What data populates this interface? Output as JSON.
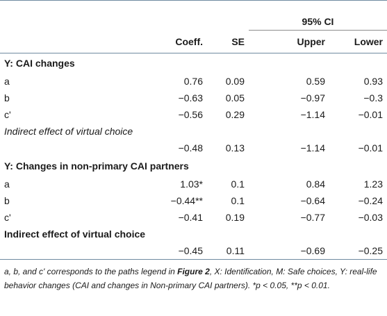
{
  "header": {
    "ci_label": "95% CI",
    "col_coeff": "Coeff.",
    "col_se": "SE",
    "col_upper": "Upper",
    "col_lower": "Lower"
  },
  "sections": [
    {
      "title": "Y: CAI changes",
      "rows": [
        {
          "label": "a",
          "coeff": "0.76",
          "se": "0.09",
          "upper": "0.59",
          "lower": "0.93"
        },
        {
          "label": "b",
          "coeff": "−0.63",
          "se": "0.05",
          "upper": "−0.97",
          "lower": "−0.3"
        },
        {
          "label": "c'",
          "coeff": "−0.56",
          "se": "0.29",
          "upper": "−1.14",
          "lower": "−0.01"
        }
      ],
      "indirect_label": "Indirect effect of virtual choice",
      "indirect": {
        "coeff": "−0.48",
        "se": "0.13",
        "upper": "−1.14",
        "lower": "−0.01"
      }
    },
    {
      "title": "Y: Changes in non-primary CAI partners",
      "rows": [
        {
          "label": "a",
          "coeff": "1.03*",
          "se": "0.1",
          "upper": "0.84",
          "lower": "1.23"
        },
        {
          "label": "b",
          "coeff": "−0.44**",
          "se": "0.1",
          "upper": "−0.64",
          "lower": "−0.24"
        },
        {
          "label": "c'",
          "coeff": "−0.41",
          "se": "0.19",
          "upper": "−0.77",
          "lower": "−0.03"
        }
      ],
      "indirect_label": "Indirect effect of virtual choice",
      "indirect": {
        "coeff": "−0.45",
        "se": "0.11",
        "upper": "−0.69",
        "lower": "−0.25"
      }
    }
  ],
  "footnote": {
    "part1": "a, b, and c' corresponds to the paths legend in ",
    "figure_ref": "Figure 2",
    "part2": ", X: Identification, M: Safe choices, Y: real-life behavior changes (CAI and changes in Non-primary CAI partners). *p < 0.05, **p < 0.01."
  }
}
